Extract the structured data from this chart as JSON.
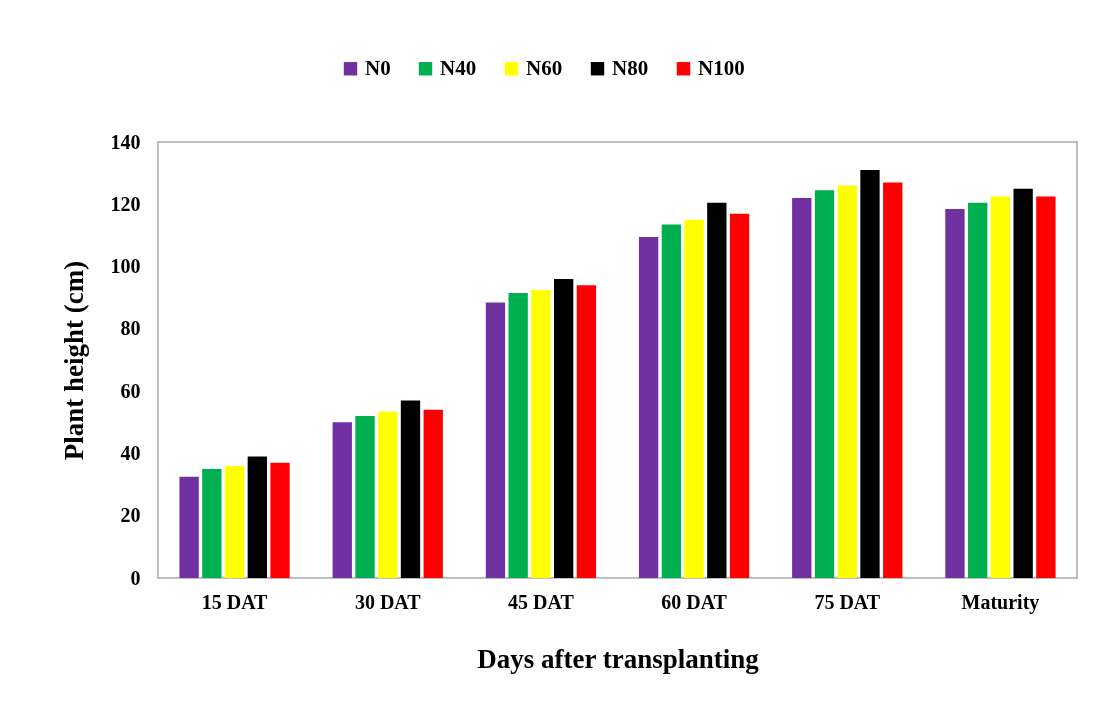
{
  "chart_data": {
    "type": "bar",
    "xlabel": "Days after transplanting",
    "ylabel": "Plant height (cm)",
    "categories": [
      "15 DAT",
      "30 DAT",
      "45 DAT",
      "60 DAT",
      "75 DAT",
      "Maturity"
    ],
    "series": [
      {
        "name": "N0",
        "color": "#7030a0",
        "values": [
          32.5,
          50,
          88.5,
          109.5,
          122,
          118.5
        ]
      },
      {
        "name": "N40",
        "color": "#00b050",
        "values": [
          35,
          52,
          91.5,
          113.5,
          124.5,
          120.5
        ]
      },
      {
        "name": "N60",
        "color": "#ffff00",
        "values": [
          36,
          53.5,
          92.5,
          115,
          126,
          122.5
        ]
      },
      {
        "name": "N80",
        "color": "#000000",
        "values": [
          39,
          57,
          96,
          120.5,
          131,
          125
        ]
      },
      {
        "name": "N100",
        "color": "#ff0000",
        "values": [
          37,
          54,
          94,
          117,
          127,
          122.5
        ]
      }
    ],
    "ylim": [
      0,
      140
    ],
    "yticks": [
      0,
      20,
      40,
      60,
      80,
      100,
      120,
      140
    ],
    "grid": false,
    "legend": "top"
  }
}
